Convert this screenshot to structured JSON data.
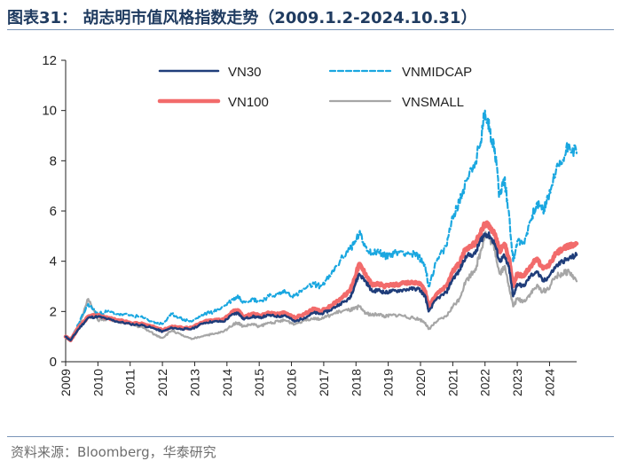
{
  "header": {
    "title": "图表31：  胡志明市值风格指数走势（2009.1.2-2024.10.31）"
  },
  "footer": {
    "source": "资料来源：Bloomberg，华泰研究"
  },
  "chart_data": {
    "type": "line",
    "title": "胡志明市值风格指数走势（2009.1.2-2024.10.31）",
    "xlabel": "",
    "ylabel": "",
    "xlim": [
      2009.0,
      2024.84
    ],
    "ylim": [
      0,
      12
    ],
    "yticks": [
      "0",
      "2",
      "4",
      "6",
      "8",
      "10",
      "12"
    ],
    "xticks": [
      "2009",
      "2010",
      "2011",
      "2012",
      "2013",
      "2014",
      "2015",
      "2016",
      "2017",
      "2018",
      "2019",
      "2020",
      "2021",
      "2022",
      "2023",
      "2024"
    ],
    "legend_position": "top",
    "series": [
      {
        "name": "VN30",
        "color": "#1f3d7a",
        "style": "solid",
        "points": [
          [
            2009.0,
            1.0
          ],
          [
            2009.15,
            0.85
          ],
          [
            2009.4,
            1.3
          ],
          [
            2009.7,
            1.75
          ],
          [
            2010.0,
            1.8
          ],
          [
            2010.3,
            1.7
          ],
          [
            2010.6,
            1.6
          ],
          [
            2011.0,
            1.5
          ],
          [
            2011.4,
            1.45
          ],
          [
            2011.8,
            1.3
          ],
          [
            2012.0,
            1.2
          ],
          [
            2012.3,
            1.35
          ],
          [
            2012.6,
            1.3
          ],
          [
            2012.9,
            1.3
          ],
          [
            2013.3,
            1.55
          ],
          [
            2013.6,
            1.6
          ],
          [
            2013.9,
            1.6
          ],
          [
            2014.2,
            1.9
          ],
          [
            2014.35,
            1.95
          ],
          [
            2014.5,
            1.7
          ],
          [
            2014.8,
            1.8
          ],
          [
            2015.0,
            1.75
          ],
          [
            2015.3,
            1.85
          ],
          [
            2015.6,
            1.8
          ],
          [
            2015.8,
            1.85
          ],
          [
            2016.1,
            1.6
          ],
          [
            2016.4,
            1.75
          ],
          [
            2016.7,
            1.95
          ],
          [
            2016.9,
            1.9
          ],
          [
            2017.2,
            2.05
          ],
          [
            2017.5,
            2.3
          ],
          [
            2017.8,
            2.5
          ],
          [
            2017.95,
            3.0
          ],
          [
            2018.1,
            3.5
          ],
          [
            2018.3,
            3.2
          ],
          [
            2018.5,
            2.8
          ],
          [
            2018.7,
            2.85
          ],
          [
            2018.9,
            2.75
          ],
          [
            2019.1,
            2.8
          ],
          [
            2019.4,
            2.85
          ],
          [
            2019.7,
            2.9
          ],
          [
            2019.95,
            2.9
          ],
          [
            2020.15,
            2.6
          ],
          [
            2020.25,
            2.0
          ],
          [
            2020.5,
            2.5
          ],
          [
            2020.8,
            2.75
          ],
          [
            2021.0,
            3.3
          ],
          [
            2021.2,
            3.6
          ],
          [
            2021.4,
            4.2
          ],
          [
            2021.7,
            4.3
          ],
          [
            2021.85,
            4.8
          ],
          [
            2022.0,
            5.1
          ],
          [
            2022.15,
            5.0
          ],
          [
            2022.3,
            4.7
          ],
          [
            2022.45,
            4.0
          ],
          [
            2022.6,
            4.2
          ],
          [
            2022.75,
            3.7
          ],
          [
            2022.87,
            2.6
          ],
          [
            2023.0,
            3.1
          ],
          [
            2023.2,
            3.0
          ],
          [
            2023.4,
            3.4
          ],
          [
            2023.6,
            3.6
          ],
          [
            2023.8,
            3.2
          ],
          [
            2023.95,
            3.35
          ],
          [
            2024.2,
            3.8
          ],
          [
            2024.4,
            4.0
          ],
          [
            2024.6,
            4.1
          ],
          [
            2024.84,
            4.25
          ]
        ]
      },
      {
        "name": "VNMIDCAP",
        "color": "#1aa7e0",
        "style": "dashed",
        "points": [
          [
            2009.0,
            1.0
          ],
          [
            2009.15,
            0.85
          ],
          [
            2009.4,
            1.5
          ],
          [
            2009.7,
            2.3
          ],
          [
            2010.0,
            1.9
          ],
          [
            2010.3,
            2.0
          ],
          [
            2010.6,
            1.9
          ],
          [
            2011.0,
            1.85
          ],
          [
            2011.4,
            1.75
          ],
          [
            2011.8,
            1.55
          ],
          [
            2012.0,
            1.5
          ],
          [
            2012.3,
            1.9
          ],
          [
            2012.6,
            1.7
          ],
          [
            2012.9,
            1.6
          ],
          [
            2013.3,
            1.9
          ],
          [
            2013.6,
            2.0
          ],
          [
            2013.9,
            2.2
          ],
          [
            2014.2,
            2.5
          ],
          [
            2014.35,
            2.6
          ],
          [
            2014.5,
            2.4
          ],
          [
            2014.8,
            2.5
          ],
          [
            2015.0,
            2.4
          ],
          [
            2015.3,
            2.6
          ],
          [
            2015.6,
            2.7
          ],
          [
            2015.8,
            2.8
          ],
          [
            2016.1,
            2.6
          ],
          [
            2016.4,
            2.9
          ],
          [
            2016.7,
            3.1
          ],
          [
            2016.9,
            3.0
          ],
          [
            2017.2,
            3.4
          ],
          [
            2017.5,
            4.0
          ],
          [
            2017.8,
            4.5
          ],
          [
            2017.95,
            4.7
          ],
          [
            2018.1,
            5.1
          ],
          [
            2018.3,
            4.6
          ],
          [
            2018.5,
            4.3
          ],
          [
            2018.7,
            4.4
          ],
          [
            2018.9,
            4.2
          ],
          [
            2019.1,
            4.3
          ],
          [
            2019.4,
            4.4
          ],
          [
            2019.7,
            4.3
          ],
          [
            2019.95,
            4.2
          ],
          [
            2020.15,
            3.8
          ],
          [
            2020.25,
            3.0
          ],
          [
            2020.5,
            4.0
          ],
          [
            2020.8,
            4.6
          ],
          [
            2021.0,
            5.8
          ],
          [
            2021.2,
            6.3
          ],
          [
            2021.4,
            7.2
          ],
          [
            2021.7,
            8.0
          ],
          [
            2021.85,
            8.6
          ],
          [
            2022.0,
            10.0
          ],
          [
            2022.15,
            9.2
          ],
          [
            2022.3,
            8.5
          ],
          [
            2022.45,
            6.6
          ],
          [
            2022.6,
            7.3
          ],
          [
            2022.75,
            5.8
          ],
          [
            2022.87,
            4.0
          ],
          [
            2023.0,
            4.8
          ],
          [
            2023.2,
            4.7
          ],
          [
            2023.4,
            5.6
          ],
          [
            2023.6,
            6.3
          ],
          [
            2023.8,
            6.0
          ],
          [
            2023.95,
            6.5
          ],
          [
            2024.2,
            7.6
          ],
          [
            2024.4,
            8.0
          ],
          [
            2024.6,
            8.7
          ],
          [
            2024.84,
            8.3
          ]
        ]
      },
      {
        "name": "VN100",
        "color": "#f26b6b",
        "style": "solid",
        "points": [
          [
            2009.0,
            1.0
          ],
          [
            2009.15,
            0.85
          ],
          [
            2009.4,
            1.35
          ],
          [
            2009.7,
            1.8
          ],
          [
            2010.0,
            1.85
          ],
          [
            2010.3,
            1.75
          ],
          [
            2010.6,
            1.65
          ],
          [
            2011.0,
            1.55
          ],
          [
            2011.4,
            1.5
          ],
          [
            2011.8,
            1.35
          ],
          [
            2012.0,
            1.25
          ],
          [
            2012.3,
            1.4
          ],
          [
            2012.6,
            1.35
          ],
          [
            2012.9,
            1.35
          ],
          [
            2013.3,
            1.6
          ],
          [
            2013.6,
            1.65
          ],
          [
            2013.9,
            1.7
          ],
          [
            2014.2,
            2.0
          ],
          [
            2014.35,
            2.05
          ],
          [
            2014.5,
            1.8
          ],
          [
            2014.8,
            1.9
          ],
          [
            2015.0,
            1.85
          ],
          [
            2015.3,
            1.95
          ],
          [
            2015.6,
            1.9
          ],
          [
            2015.8,
            1.95
          ],
          [
            2016.1,
            1.75
          ],
          [
            2016.4,
            1.9
          ],
          [
            2016.7,
            2.1
          ],
          [
            2016.9,
            2.0
          ],
          [
            2017.2,
            2.2
          ],
          [
            2017.5,
            2.5
          ],
          [
            2017.8,
            2.8
          ],
          [
            2017.95,
            3.3
          ],
          [
            2018.1,
            3.9
          ],
          [
            2018.3,
            3.5
          ],
          [
            2018.5,
            3.05
          ],
          [
            2018.7,
            3.1
          ],
          [
            2018.9,
            3.0
          ],
          [
            2019.1,
            3.05
          ],
          [
            2019.4,
            3.1
          ],
          [
            2019.7,
            3.15
          ],
          [
            2019.95,
            3.15
          ],
          [
            2020.15,
            2.8
          ],
          [
            2020.25,
            2.2
          ],
          [
            2020.5,
            2.7
          ],
          [
            2020.8,
            3.0
          ],
          [
            2021.0,
            3.6
          ],
          [
            2021.2,
            3.9
          ],
          [
            2021.4,
            4.5
          ],
          [
            2021.7,
            4.7
          ],
          [
            2021.85,
            5.1
          ],
          [
            2022.0,
            5.5
          ],
          [
            2022.15,
            5.4
          ],
          [
            2022.3,
            5.1
          ],
          [
            2022.45,
            4.4
          ],
          [
            2022.6,
            4.7
          ],
          [
            2022.75,
            4.1
          ],
          [
            2022.87,
            3.0
          ],
          [
            2023.0,
            3.5
          ],
          [
            2023.2,
            3.4
          ],
          [
            2023.4,
            3.8
          ],
          [
            2023.6,
            4.1
          ],
          [
            2023.8,
            3.7
          ],
          [
            2023.95,
            3.8
          ],
          [
            2024.2,
            4.3
          ],
          [
            2024.4,
            4.5
          ],
          [
            2024.6,
            4.6
          ],
          [
            2024.84,
            4.7
          ]
        ]
      },
      {
        "name": "VNSMALL",
        "color": "#a6a6a6",
        "style": "solid",
        "points": [
          [
            2009.0,
            1.0
          ],
          [
            2009.15,
            0.85
          ],
          [
            2009.4,
            1.4
          ],
          [
            2009.7,
            2.5
          ],
          [
            2010.0,
            1.65
          ],
          [
            2010.3,
            1.7
          ],
          [
            2010.6,
            1.6
          ],
          [
            2011.0,
            1.5
          ],
          [
            2011.4,
            1.35
          ],
          [
            2011.8,
            1.05
          ],
          [
            2012.0,
            0.95
          ],
          [
            2012.3,
            1.25
          ],
          [
            2012.6,
            1.05
          ],
          [
            2012.9,
            0.9
          ],
          [
            2013.3,
            1.05
          ],
          [
            2013.6,
            1.1
          ],
          [
            2013.9,
            1.2
          ],
          [
            2014.2,
            1.5
          ],
          [
            2014.35,
            1.55
          ],
          [
            2014.5,
            1.4
          ],
          [
            2014.8,
            1.5
          ],
          [
            2015.0,
            1.4
          ],
          [
            2015.3,
            1.55
          ],
          [
            2015.6,
            1.6
          ],
          [
            2015.8,
            1.65
          ],
          [
            2016.1,
            1.5
          ],
          [
            2016.4,
            1.65
          ],
          [
            2016.7,
            1.75
          ],
          [
            2016.9,
            1.7
          ],
          [
            2017.2,
            1.85
          ],
          [
            2017.5,
            2.0
          ],
          [
            2017.8,
            2.05
          ],
          [
            2017.95,
            2.1
          ],
          [
            2018.1,
            2.2
          ],
          [
            2018.3,
            1.95
          ],
          [
            2018.5,
            1.85
          ],
          [
            2018.7,
            1.9
          ],
          [
            2018.9,
            1.8
          ],
          [
            2019.1,
            1.85
          ],
          [
            2019.4,
            1.85
          ],
          [
            2019.7,
            1.75
          ],
          [
            2019.95,
            1.7
          ],
          [
            2020.15,
            1.55
          ],
          [
            2020.25,
            1.3
          ],
          [
            2020.5,
            1.6
          ],
          [
            2020.8,
            1.8
          ],
          [
            2021.0,
            2.2
          ],
          [
            2021.2,
            2.5
          ],
          [
            2021.4,
            3.2
          ],
          [
            2021.7,
            3.7
          ],
          [
            2021.85,
            4.3
          ],
          [
            2022.0,
            5.1
          ],
          [
            2022.15,
            4.9
          ],
          [
            2022.3,
            4.5
          ],
          [
            2022.45,
            3.5
          ],
          [
            2022.6,
            3.8
          ],
          [
            2022.75,
            3.0
          ],
          [
            2022.87,
            2.2
          ],
          [
            2023.0,
            2.5
          ],
          [
            2023.2,
            2.4
          ],
          [
            2023.4,
            2.7
          ],
          [
            2023.6,
            3.0
          ],
          [
            2023.8,
            2.8
          ],
          [
            2023.95,
            2.9
          ],
          [
            2024.2,
            3.4
          ],
          [
            2024.4,
            3.5
          ],
          [
            2024.6,
            3.6
          ],
          [
            2024.84,
            3.2
          ]
        ]
      }
    ]
  }
}
